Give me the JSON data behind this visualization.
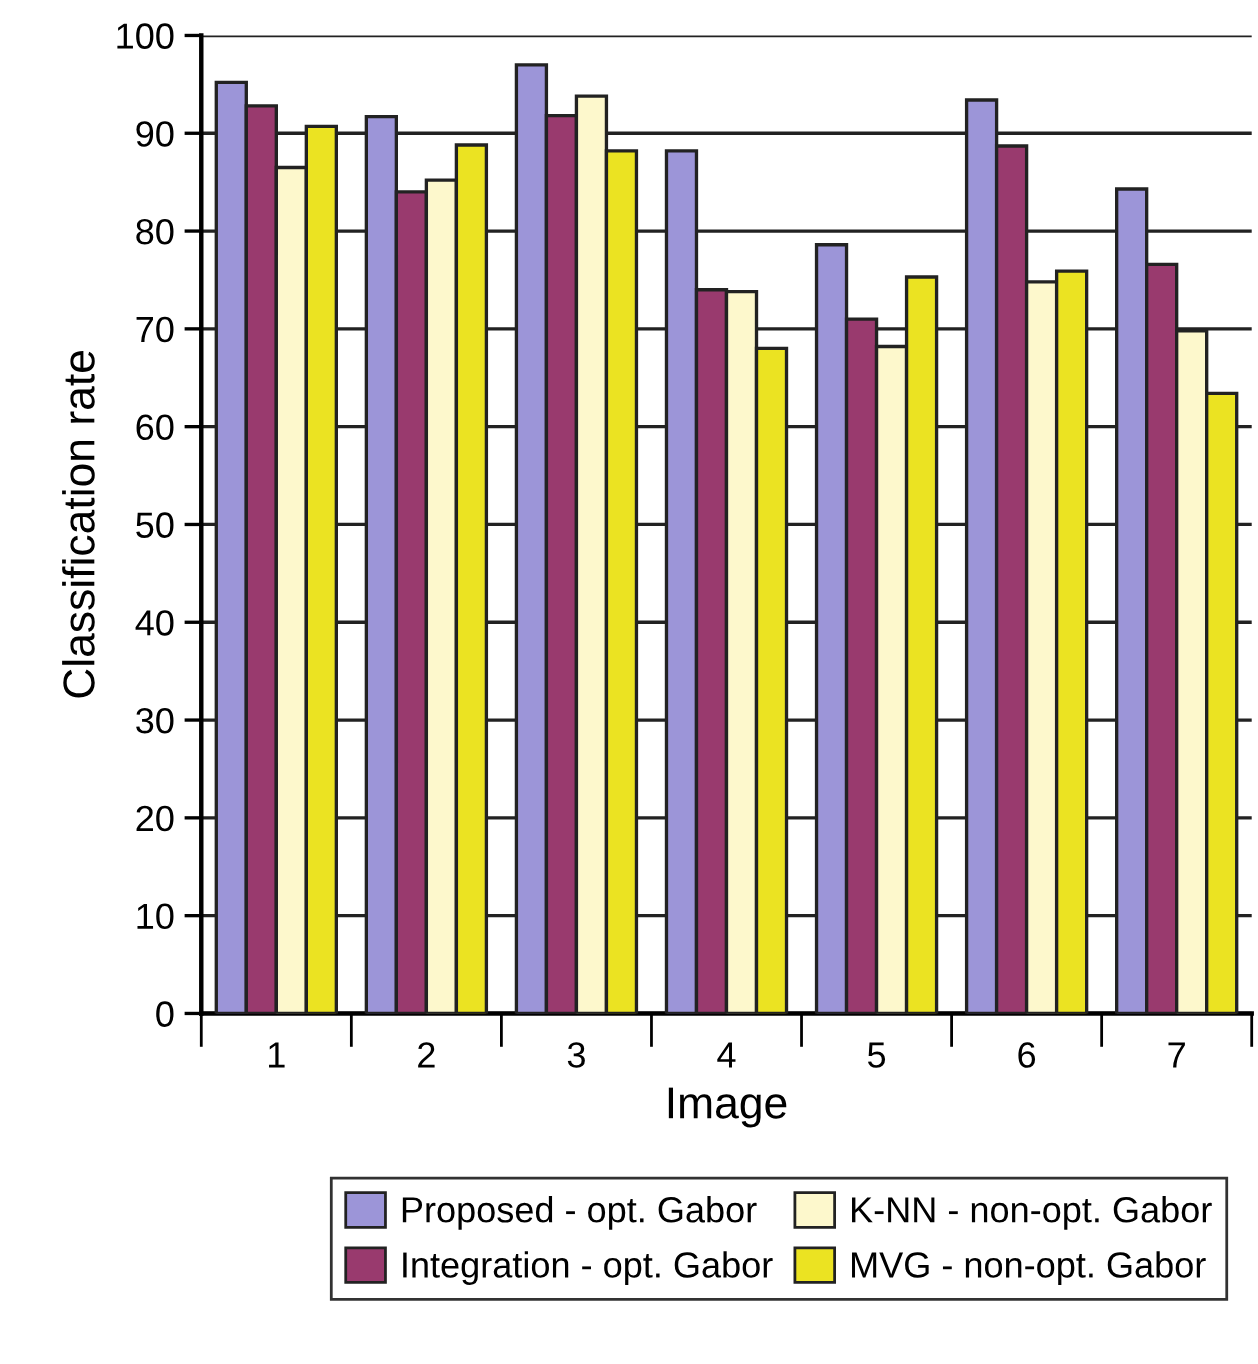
{
  "chart_data": {
    "type": "bar",
    "xlabel": "Image",
    "ylabel": "Classification rate",
    "categories": [
      "1",
      "2",
      "3",
      "4",
      "5",
      "6",
      "7"
    ],
    "series": [
      {
        "name": "Proposed - opt. Gabor",
        "color": "#9c95d8",
        "values": [
          95.2,
          91.7,
          97.0,
          88.2,
          78.6,
          93.4,
          84.3
        ]
      },
      {
        "name": "Integration - opt. Gabor",
        "color": "#993a6e",
        "values": [
          92.8,
          84.0,
          91.8,
          74.0,
          71.0,
          88.7,
          76.6
        ]
      },
      {
        "name": "K-NN - non-opt. Gabor",
        "color": "#fdf8cc",
        "values": [
          86.5,
          85.2,
          93.8,
          73.8,
          68.2,
          74.8,
          69.8
        ]
      },
      {
        "name": "MVG - non-opt. Gabor",
        "color": "#ebe322",
        "values": [
          90.7,
          88.8,
          88.2,
          68.0,
          75.3,
          75.9,
          63.4
        ]
      }
    ],
    "ylim": [
      0,
      100
    ],
    "yticks": [
      0,
      10,
      20,
      30,
      40,
      50,
      60,
      70,
      80,
      90,
      100
    ],
    "grid": "y",
    "legend": "bottom"
  }
}
